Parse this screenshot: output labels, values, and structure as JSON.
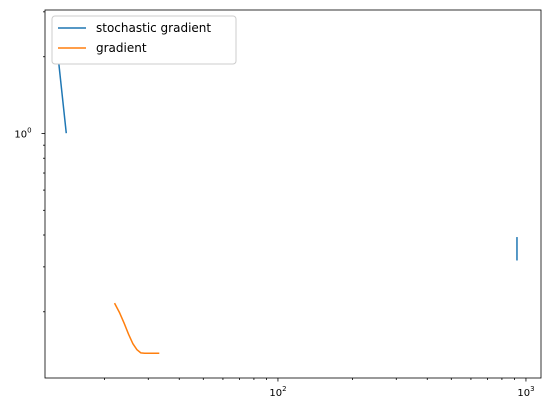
{
  "chart_data": {
    "type": "line",
    "title": "",
    "xlabel": "",
    "ylabel": "",
    "xscale": "log",
    "yscale": "log",
    "xlim": [
      11.5,
      1150
    ],
    "ylim": [
      0.11,
      3.05
    ],
    "grid": false,
    "legend_position": "top-left",
    "x_major_ticks": [
      {
        "value": 100,
        "base": "10",
        "exp": "2"
      },
      {
        "value": 1000,
        "base": "10",
        "exp": "3"
      }
    ],
    "y_major_ticks": [
      {
        "value": 1,
        "base": "10",
        "exp": "0"
      }
    ],
    "series": [
      {
        "name": "stochastic gradient",
        "color": "#1f77b4",
        "segments": [
          [
            [
              13.0,
              1.98
            ],
            [
              14.0,
              1.01
            ]
          ],
          [
            [
              920,
              0.39
            ],
            [
              920,
              0.32
            ]
          ]
        ]
      },
      {
        "name": "gradient",
        "color": "#ff7f0e",
        "segments": [
          [
            [
              22,
              0.215
            ],
            [
              23,
              0.198
            ],
            [
              24,
              0.18
            ],
            [
              25,
              0.163
            ],
            [
              26,
              0.15
            ],
            [
              27,
              0.142
            ],
            [
              28,
              0.138
            ],
            [
              29,
              0.1375
            ],
            [
              30,
              0.1375
            ],
            [
              31,
              0.1375
            ],
            [
              32,
              0.1375
            ],
            [
              33,
              0.1375
            ]
          ]
        ]
      }
    ]
  }
}
